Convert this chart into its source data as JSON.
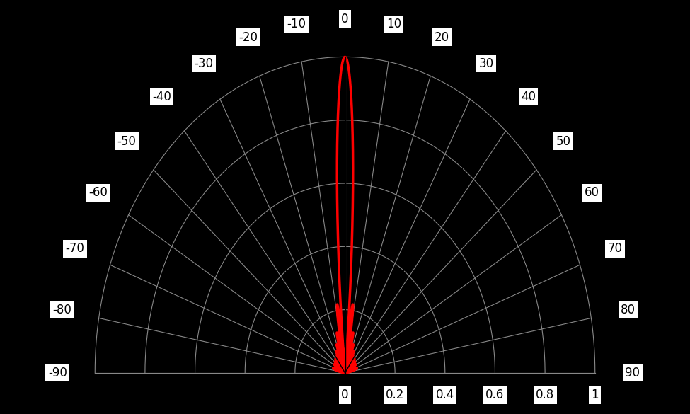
{
  "background_color": "#000000",
  "grid_color": "#888888",
  "pattern_color": "#ff0000",
  "black_line_color": "#000000",
  "angle_labels": [
    -90,
    -80,
    -70,
    -60,
    -50,
    -40,
    -30,
    -20,
    -10,
    0,
    10,
    20,
    30,
    40,
    50,
    60,
    70,
    80,
    90
  ],
  "radial_labels": [
    "0",
    "0.2",
    "0.4",
    "0.6",
    "0.8",
    "1"
  ],
  "radial_values": [
    0.0,
    0.2,
    0.4,
    0.6,
    0.8,
    1.0
  ],
  "radial_ticks": [
    0.2,
    0.4,
    0.6,
    0.8,
    1.0
  ],
  "label_box_color": "#ffffff",
  "label_text_color": "#000000",
  "label_fontsize": 12,
  "figsize": [
    9.75,
    5.85
  ],
  "dpi": 100,
  "N_array": 20
}
